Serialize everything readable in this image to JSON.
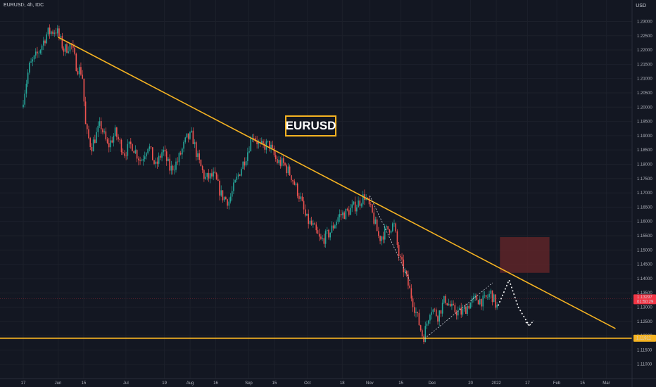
{
  "header": {
    "symbol_info": "EURUSD, 4h, IDC",
    "currency": "USD"
  },
  "annotation": {
    "title": "EURUSD"
  },
  "colors": {
    "background": "#131722",
    "trendline": "#f5b322",
    "bull_candle": "#26a69a",
    "bear_candle": "#ef5350",
    "resistance_zone": "#5e2428",
    "price_label": "#f23645",
    "support_label": "#f5b322",
    "axis_text": "#d1d4dc"
  },
  "chart_data": {
    "type": "line",
    "symbol": "EURUSD",
    "timeframe": "4h",
    "source": "IDC",
    "ylim": [
      1.105,
      1.2375
    ],
    "y_ticks": [
      "1.23000",
      "1.22500",
      "1.22000",
      "1.21500",
      "1.21000",
      "1.20500",
      "1.20000",
      "1.19500",
      "1.19000",
      "1.18500",
      "1.18000",
      "1.17500",
      "1.17000",
      "1.16500",
      "1.16000",
      "1.15500",
      "1.15000",
      "1.14500",
      "1.14000",
      "1.13500",
      "1.13000",
      "1.12500",
      "1.12000",
      "1.11500",
      "1.11000"
    ],
    "x_ticks": [
      "17",
      "Jun",
      "15",
      "Jul",
      "19",
      "Aug",
      "16",
      "Sep",
      "15",
      "Oct",
      "18",
      "Nov",
      "15",
      "Dec",
      "20",
      "2022",
      "17",
      "Feb",
      "15",
      "Mar"
    ],
    "x_tick_index": [
      0,
      1.9,
      3.3,
      5.6,
      7.7,
      9.1,
      10.5,
      12.3,
      13.7,
      15.5,
      17.4,
      18.9,
      20.6,
      22.3,
      24.4,
      25.8,
      27.5,
      29.1,
      30.5,
      31.8
    ],
    "price_path": [
      [
        0,
        1.2
      ],
      [
        0.4,
        1.214
      ],
      [
        0.9,
        1.219
      ],
      [
        1.4,
        1.226
      ],
      [
        1.9,
        1.227
      ],
      [
        2.3,
        1.22
      ],
      [
        2.7,
        1.222
      ],
      [
        3.0,
        1.214
      ],
      [
        3.3,
        1.212
      ],
      [
        3.5,
        1.192
      ],
      [
        3.8,
        1.186
      ],
      [
        4.3,
        1.194
      ],
      [
        4.7,
        1.186
      ],
      [
        5.1,
        1.191
      ],
      [
        5.6,
        1.184
      ],
      [
        6.0,
        1.187
      ],
      [
        6.5,
        1.181
      ],
      [
        6.9,
        1.187
      ],
      [
        7.3,
        1.179
      ],
      [
        7.7,
        1.185
      ],
      [
        8.1,
        1.178
      ],
      [
        8.5,
        1.181
      ],
      [
        9.0,
        1.189
      ],
      [
        9.3,
        1.19
      ],
      [
        9.6,
        1.182
      ],
      [
        10.0,
        1.175
      ],
      [
        10.5,
        1.176
      ],
      [
        10.9,
        1.169
      ],
      [
        11.3,
        1.167
      ],
      [
        11.8,
        1.176
      ],
      [
        12.3,
        1.184
      ],
      [
        12.6,
        1.191
      ],
      [
        13.0,
        1.186
      ],
      [
        13.5,
        1.187
      ],
      [
        13.9,
        1.181
      ],
      [
        14.3,
        1.18
      ],
      [
        14.7,
        1.176
      ],
      [
        15.2,
        1.168
      ],
      [
        15.5,
        1.161
      ],
      [
        15.9,
        1.158
      ],
      [
        16.3,
        1.153
      ],
      [
        16.8,
        1.156
      ],
      [
        17.3,
        1.162
      ],
      [
        17.7,
        1.163
      ],
      [
        18.3,
        1.166
      ],
      [
        18.7,
        1.169
      ],
      [
        19.1,
        1.163
      ],
      [
        19.5,
        1.154
      ],
      [
        19.9,
        1.157
      ],
      [
        20.3,
        1.159
      ],
      [
        20.6,
        1.147
      ],
      [
        20.9,
        1.142
      ],
      [
        21.2,
        1.135
      ],
      [
        21.6,
        1.126
      ],
      [
        21.9,
        1.119
      ],
      [
        22.3,
        1.13
      ],
      [
        22.7,
        1.127
      ],
      [
        23.1,
        1.133
      ],
      [
        23.5,
        1.129
      ],
      [
        24.0,
        1.128
      ],
      [
        24.4,
        1.131
      ],
      [
        24.8,
        1.133
      ],
      [
        25.2,
        1.132
      ],
      [
        25.6,
        1.135
      ],
      [
        25.9,
        1.13
      ]
    ],
    "trendline": [
      [
        1.9,
        1.2245
      ],
      [
        32.3,
        1.1225
      ]
    ],
    "support_level": 1.11911,
    "resistance_zone": {
      "x": [
        26.0,
        28.7
      ],
      "y": [
        1.142,
        1.1545
      ]
    },
    "current_price": 1.13297,
    "current_price_label": "1.13297",
    "countdown_label": "01:50:29",
    "support_label": "1.11911",
    "projection": [
      [
        25.9,
        1.1305
      ],
      [
        26.5,
        1.1395
      ],
      [
        27.0,
        1.13
      ],
      [
        27.6,
        1.1235
      ]
    ],
    "wedge_lines": [
      [
        [
          21.9,
          1.119
        ],
        [
          25.6,
          1.1385
        ]
      ],
      [
        [
          18.9,
          1.169
        ],
        [
          21.1,
          1.139
        ]
      ]
    ],
    "grid": true
  }
}
